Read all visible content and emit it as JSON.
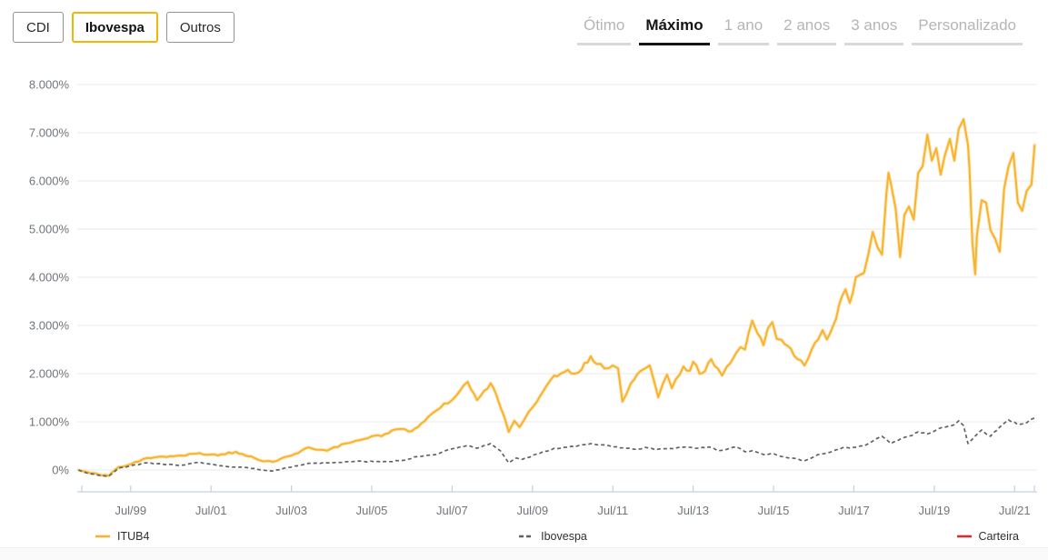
{
  "header": {
    "filters": [
      {
        "label": "CDI",
        "active": false
      },
      {
        "label": "Ibovespa",
        "active": true
      },
      {
        "label": "Outros",
        "active": false
      }
    ],
    "period_tabs": [
      {
        "label": "Ótimo",
        "active": false
      },
      {
        "label": "Máximo",
        "active": true
      },
      {
        "label": "1 ano",
        "active": false
      },
      {
        "label": "2 anos",
        "active": false
      },
      {
        "label": "3 anos",
        "active": false
      },
      {
        "label": "Personalizado",
        "active": false
      }
    ],
    "accent_color": "#F2B705"
  },
  "chart_data": {
    "type": "line",
    "title": "",
    "xlabel": "",
    "ylabel": "",
    "xlim": [
      1998.17,
      2022.06
    ],
    "ylim": [
      -434,
      8434
    ],
    "grid": "horizontal",
    "legend_position": "bottom",
    "colors": {
      "grid": "#E9E9EB",
      "axis": "#C7D0DF",
      "label": "#70757A"
    },
    "y_ticks": [
      {
        "value": 0,
        "label": "0%"
      },
      {
        "value": 1000,
        "label": "1.000%"
      },
      {
        "value": 2000,
        "label": "2.000%"
      },
      {
        "value": 3000,
        "label": "3.000%"
      },
      {
        "value": 4000,
        "label": "4.000%"
      },
      {
        "value": 5000,
        "label": "5.000%"
      },
      {
        "value": 6000,
        "label": "6.000%"
      },
      {
        "value": 7000,
        "label": "7.000%"
      },
      {
        "value": 8000,
        "label": "8.000%"
      }
    ],
    "x_ticks": [
      {
        "value": 1999.5,
        "label": "Jul/99"
      },
      {
        "value": 2001.5,
        "label": "Jul/01"
      },
      {
        "value": 2003.5,
        "label": "Jul/03"
      },
      {
        "value": 2005.5,
        "label": "Jul/05"
      },
      {
        "value": 2007.5,
        "label": "Jul/07"
      },
      {
        "value": 2009.5,
        "label": "Jul/09"
      },
      {
        "value": 2011.5,
        "label": "Jul/11"
      },
      {
        "value": 2013.5,
        "label": "Jul/13"
      },
      {
        "value": 2015.5,
        "label": "Jul/15"
      },
      {
        "value": 2017.5,
        "label": "Jul/17"
      },
      {
        "value": 2019.5,
        "label": "Jul/19"
      },
      {
        "value": 2021.5,
        "label": "Jul/21"
      }
    ],
    "series": [
      {
        "name": "ITUB4",
        "color": "#F7B32D",
        "halo": "#FCD68A",
        "width": 2,
        "dash": "",
        "noise": 55,
        "points": [
          [
            1998.2,
            0
          ],
          [
            1998.4,
            -40
          ],
          [
            1998.7,
            -90
          ],
          [
            1998.95,
            -120
          ],
          [
            1999.2,
            60
          ],
          [
            1999.5,
            120
          ],
          [
            1999.9,
            250
          ],
          [
            2000.3,
            280
          ],
          [
            2000.77,
            300
          ],
          [
            2001.22,
            350
          ],
          [
            2001.5,
            320
          ],
          [
            2001.67,
            300
          ],
          [
            2002.12,
            380
          ],
          [
            2002.35,
            300
          ],
          [
            2002.58,
            250
          ],
          [
            2002.8,
            180
          ],
          [
            2003.03,
            170
          ],
          [
            2003.5,
            300
          ],
          [
            2003.93,
            470
          ],
          [
            2004.2,
            420
          ],
          [
            2004.39,
            400
          ],
          [
            2004.84,
            550
          ],
          [
            2005.29,
            640
          ],
          [
            2005.5,
            700
          ],
          [
            2005.74,
            700
          ],
          [
            2006.0,
            820
          ],
          [
            2006.2,
            850
          ],
          [
            2006.42,
            800
          ],
          [
            2006.65,
            890
          ],
          [
            2006.9,
            1100
          ],
          [
            2007.1,
            1230
          ],
          [
            2007.3,
            1380
          ],
          [
            2007.5,
            1450
          ],
          [
            2007.7,
            1650
          ],
          [
            2007.89,
            1830
          ],
          [
            2008.12,
            1450
          ],
          [
            2008.3,
            1650
          ],
          [
            2008.46,
            1800
          ],
          [
            2008.6,
            1560
          ],
          [
            2008.8,
            1100
          ],
          [
            2008.91,
            790
          ],
          [
            2009.05,
            1020
          ],
          [
            2009.18,
            890
          ],
          [
            2009.3,
            1050
          ],
          [
            2009.5,
            1300
          ],
          [
            2009.7,
            1550
          ],
          [
            2009.85,
            1750
          ],
          [
            2010.04,
            1960
          ],
          [
            2010.2,
            2000
          ],
          [
            2010.38,
            2080
          ],
          [
            2010.55,
            2000
          ],
          [
            2010.72,
            2080
          ],
          [
            2010.95,
            2360
          ],
          [
            2011.1,
            2200
          ],
          [
            2011.29,
            2110
          ],
          [
            2011.5,
            2170
          ],
          [
            2011.63,
            2110
          ],
          [
            2011.74,
            1420
          ],
          [
            2011.95,
            1800
          ],
          [
            2012.2,
            2060
          ],
          [
            2012.42,
            2170
          ],
          [
            2012.63,
            1510
          ],
          [
            2012.85,
            1980
          ],
          [
            2012.97,
            1700
          ],
          [
            2013.26,
            2150
          ],
          [
            2013.42,
            2060
          ],
          [
            2013.5,
            2245
          ],
          [
            2013.66,
            2000
          ],
          [
            2013.8,
            2060
          ],
          [
            2013.95,
            2300
          ],
          [
            2014.11,
            2110
          ],
          [
            2014.22,
            1960
          ],
          [
            2014.34,
            2150
          ],
          [
            2014.57,
            2430
          ],
          [
            2014.68,
            2550
          ],
          [
            2014.79,
            2500
          ],
          [
            2014.97,
            3100
          ],
          [
            2015.1,
            2840
          ],
          [
            2015.25,
            2590
          ],
          [
            2015.36,
            2940
          ],
          [
            2015.47,
            3070
          ],
          [
            2015.58,
            2720
          ],
          [
            2015.7,
            2700
          ],
          [
            2015.93,
            2520
          ],
          [
            2016.1,
            2300
          ],
          [
            2016.27,
            2170
          ],
          [
            2016.45,
            2500
          ],
          [
            2016.61,
            2710
          ],
          [
            2016.72,
            2900
          ],
          [
            2016.83,
            2710
          ],
          [
            2017.06,
            3150
          ],
          [
            2017.2,
            3600
          ],
          [
            2017.29,
            3750
          ],
          [
            2017.4,
            3470
          ],
          [
            2017.55,
            4000
          ],
          [
            2017.63,
            4040
          ],
          [
            2017.75,
            4090
          ],
          [
            2017.86,
            4470
          ],
          [
            2017.97,
            4940
          ],
          [
            2018.09,
            4620
          ],
          [
            2018.2,
            4470
          ],
          [
            2018.31,
            5730
          ],
          [
            2018.36,
            6170
          ],
          [
            2018.42,
            5950
          ],
          [
            2018.54,
            5420
          ],
          [
            2018.65,
            4420
          ],
          [
            2018.76,
            5300
          ],
          [
            2018.87,
            5470
          ],
          [
            2018.99,
            5200
          ],
          [
            2019.1,
            6170
          ],
          [
            2019.21,
            6300
          ],
          [
            2019.33,
            6960
          ],
          [
            2019.44,
            6420
          ],
          [
            2019.55,
            6680
          ],
          [
            2019.66,
            6130
          ],
          [
            2019.77,
            6550
          ],
          [
            2019.89,
            6870
          ],
          [
            2020.0,
            6420
          ],
          [
            2020.11,
            7080
          ],
          [
            2020.23,
            7280
          ],
          [
            2020.34,
            6740
          ],
          [
            2020.38,
            6230
          ],
          [
            2020.45,
            4720
          ],
          [
            2020.52,
            4060
          ],
          [
            2020.56,
            4850
          ],
          [
            2020.68,
            5600
          ],
          [
            2020.79,
            5550
          ],
          [
            2020.9,
            4980
          ],
          [
            2021.02,
            4790
          ],
          [
            2021.13,
            4530
          ],
          [
            2021.24,
            5850
          ],
          [
            2021.35,
            6300
          ],
          [
            2021.47,
            6580
          ],
          [
            2021.58,
            5550
          ],
          [
            2021.69,
            5380
          ],
          [
            2021.8,
            5790
          ],
          [
            2021.92,
            5920
          ],
          [
            2022.0,
            6750
          ]
        ]
      },
      {
        "name": "Ibovespa",
        "color": "#5F6368",
        "halo": "",
        "width": 1.7,
        "dash": "4 3",
        "noise": 35,
        "points": [
          [
            1998.2,
            0
          ],
          [
            1998.4,
            -60
          ],
          [
            1998.7,
            -110
          ],
          [
            1998.95,
            -130
          ],
          [
            1999.2,
            40
          ],
          [
            1999.5,
            90
          ],
          [
            1999.9,
            150
          ],
          [
            2000.3,
            120
          ],
          [
            2000.77,
            100
          ],
          [
            2001.22,
            160
          ],
          [
            2001.5,
            120
          ],
          [
            2001.67,
            90
          ],
          [
            2002.12,
            60
          ],
          [
            2002.4,
            50
          ],
          [
            2002.58,
            30
          ],
          [
            2002.8,
            0
          ],
          [
            2003.03,
            -20
          ],
          [
            2003.5,
            60
          ],
          [
            2003.93,
            140
          ],
          [
            2004.39,
            150
          ],
          [
            2004.84,
            170
          ],
          [
            2005.29,
            180
          ],
          [
            2005.74,
            170
          ],
          [
            2006.2,
            190
          ],
          [
            2006.65,
            280
          ],
          [
            2007.1,
            320
          ],
          [
            2007.5,
            440
          ],
          [
            2007.89,
            510
          ],
          [
            2008.12,
            450
          ],
          [
            2008.46,
            550
          ],
          [
            2008.7,
            400
          ],
          [
            2008.91,
            150
          ],
          [
            2009.1,
            250
          ],
          [
            2009.25,
            220
          ],
          [
            2009.6,
            330
          ],
          [
            2010.04,
            450
          ],
          [
            2010.38,
            470
          ],
          [
            2010.72,
            520
          ],
          [
            2010.95,
            550
          ],
          [
            2011.29,
            520
          ],
          [
            2011.6,
            480
          ],
          [
            2011.85,
            450
          ],
          [
            2012.1,
            430
          ],
          [
            2012.3,
            470
          ],
          [
            2012.55,
            420
          ],
          [
            2012.75,
            440
          ],
          [
            2013.1,
            460
          ],
          [
            2013.35,
            480
          ],
          [
            2013.65,
            450
          ],
          [
            2013.9,
            480
          ],
          [
            2014.11,
            400
          ],
          [
            2014.34,
            430
          ],
          [
            2014.57,
            480
          ],
          [
            2014.79,
            380
          ],
          [
            2014.97,
            400
          ],
          [
            2015.25,
            320
          ],
          [
            2015.5,
            340
          ],
          [
            2015.7,
            280
          ],
          [
            2015.93,
            250
          ],
          [
            2016.27,
            190
          ],
          [
            2016.61,
            320
          ],
          [
            2016.83,
            350
          ],
          [
            2017.06,
            420
          ],
          [
            2017.29,
            470
          ],
          [
            2017.5,
            470
          ],
          [
            2017.75,
            500
          ],
          [
            2017.97,
            600
          ],
          [
            2018.2,
            700
          ],
          [
            2018.42,
            550
          ],
          [
            2018.65,
            640
          ],
          [
            2018.87,
            700
          ],
          [
            2019.1,
            790
          ],
          [
            2019.33,
            750
          ],
          [
            2019.55,
            830
          ],
          [
            2019.77,
            890
          ],
          [
            2020.0,
            940
          ],
          [
            2020.11,
            1020
          ],
          [
            2020.23,
            920
          ],
          [
            2020.34,
            550
          ],
          [
            2020.45,
            640
          ],
          [
            2020.68,
            830
          ],
          [
            2020.79,
            750
          ],
          [
            2020.9,
            700
          ],
          [
            2021.13,
            890
          ],
          [
            2021.35,
            1040
          ],
          [
            2021.58,
            940
          ],
          [
            2021.8,
            980
          ],
          [
            2022.0,
            1080
          ]
        ]
      },
      {
        "name": "Carteira",
        "color": "#D32D2F",
        "halo": "",
        "width": 2,
        "dash": "",
        "noise": 0,
        "points": []
      }
    ]
  }
}
